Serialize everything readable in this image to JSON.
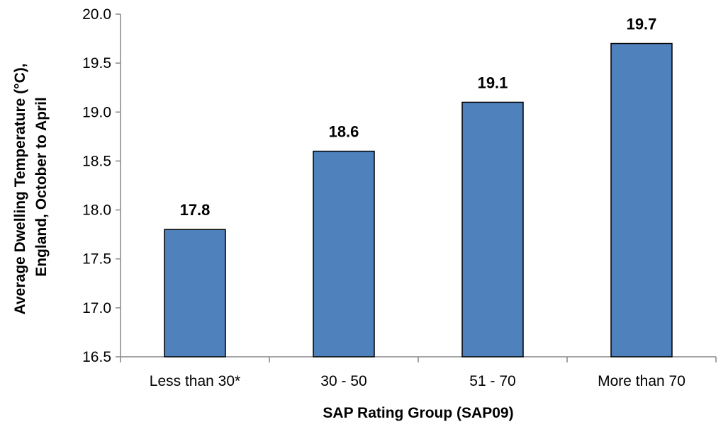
{
  "chart_data": {
    "type": "bar",
    "categories": [
      "Less than 30*",
      "30 - 50",
      "51 - 70",
      "More than 70"
    ],
    "values": [
      17.8,
      18.6,
      19.1,
      19.7
    ],
    "data_labels": [
      "17.8",
      "18.6",
      "19.1",
      "19.7"
    ],
    "xlabel": "SAP Rating Group (SAP09)",
    "ylabel_lines": [
      "Average Dwelling Temperature (°C),",
      "England, October to April"
    ],
    "ylim": [
      16.5,
      20.0
    ],
    "yticks": [
      16.5,
      17.0,
      17.5,
      18.0,
      18.5,
      19.0,
      19.5,
      20.0
    ],
    "ytick_labels": [
      "16.5",
      "17.0",
      "17.5",
      "18.0",
      "18.5",
      "19.0",
      "19.5",
      "20.0"
    ],
    "bar_color": "#4F81BD",
    "grid": false,
    "legend": "none"
  }
}
